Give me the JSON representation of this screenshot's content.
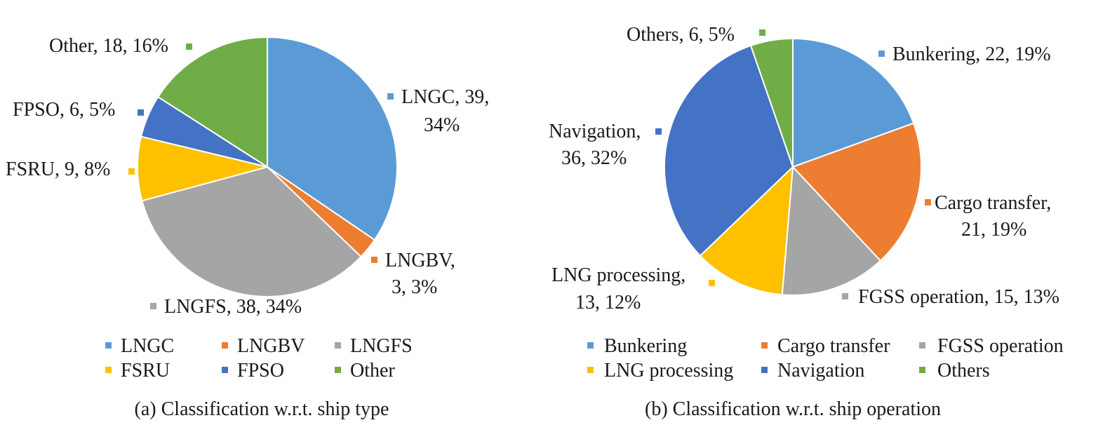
{
  "chart_data": [
    {
      "type": "pie",
      "caption": "(a) Classification w.r.t. ship type",
      "categories": [
        "LNGC",
        "LNGBV",
        "LNGFS",
        "FSRU",
        "FPSO",
        "Other"
      ],
      "values": [
        39,
        3,
        38,
        9,
        6,
        18
      ],
      "percents": [
        "34%",
        "3%",
        "34%",
        "8%",
        "5%",
        "16%"
      ],
      "colors": [
        "#5b9bd5",
        "#ed7d31",
        "#a5a5a5",
        "#ffc000",
        "#4472c4",
        "#70ad47"
      ],
      "data_labels": [
        [
          "LNGC, 39,",
          "34%"
        ],
        [
          "LNGBV,",
          "3, 3%"
        ],
        [
          "LNGFS, 38, 34%"
        ],
        [
          "FSRU, 9, 8%"
        ],
        [
          "FPSO, 6, 5%"
        ],
        [
          "Other, 18, 16%"
        ]
      ],
      "legend": [
        "LNGC",
        "LNGBV",
        "LNGFS",
        "FSRU",
        "FPSO",
        "Other"
      ],
      "legend_position": "bottom"
    },
    {
      "type": "pie",
      "caption": "(b) Classification w.r.t. ship operation",
      "categories": [
        "Bunkering",
        "Cargo transfer",
        "FGSS operation",
        "LNG processing",
        "Navigation",
        "Others"
      ],
      "values": [
        22,
        21,
        15,
        13,
        36,
        6
      ],
      "percents": [
        "19%",
        "19%",
        "13%",
        "12%",
        "32%",
        "5%"
      ],
      "colors": [
        "#5b9bd5",
        "#ed7d31",
        "#a5a5a5",
        "#ffc000",
        "#4472c4",
        "#70ad47"
      ],
      "data_labels": [
        [
          "Bunkering, 22, 19%"
        ],
        [
          "Cargo transfer,",
          "21, 19%"
        ],
        [
          "FGSS operation, 15, 13%"
        ],
        [
          "LNG processing,",
          "13, 12%"
        ],
        [
          "Navigation,",
          "36, 32%"
        ],
        [
          "Others, 6, 5%"
        ]
      ],
      "legend": [
        "Bunkering",
        "Cargo transfer",
        "FGSS operation",
        "LNG processing",
        "Navigation",
        "Others"
      ],
      "legend_position": "bottom"
    }
  ]
}
